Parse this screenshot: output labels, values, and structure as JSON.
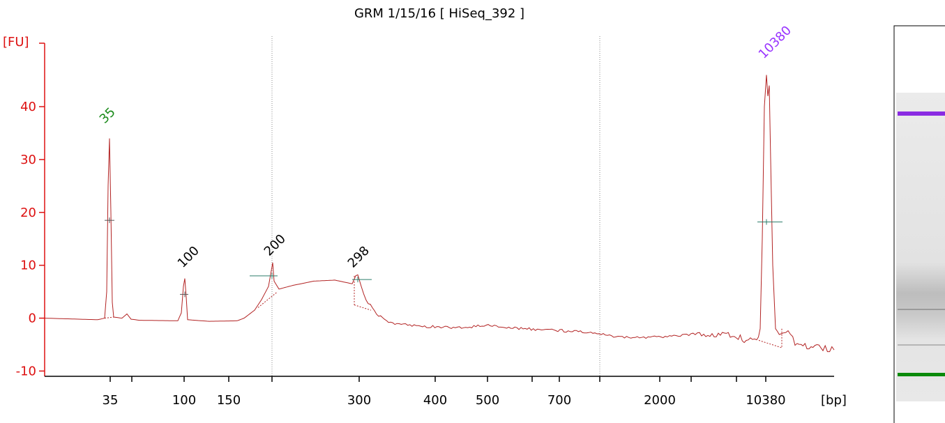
{
  "chart_data": {
    "type": "line",
    "title": "GRM 1/15/16  [ HiSeq_392 ]",
    "ylabel": "[FU]",
    "xlabel": "[bp]",
    "ylim": [
      -11,
      52
    ],
    "yticks": [
      -10,
      0,
      10,
      20,
      30,
      40
    ],
    "xticks": [
      {
        "label": "35"
      },
      {
        "label": ""
      },
      {
        "label": "100"
      },
      {
        "label": "150"
      },
      {
        "label": ""
      },
      {
        "label": "300"
      },
      {
        "label": "400"
      },
      {
        "label": "500"
      },
      {
        "label": ""
      },
      {
        "label": "700"
      },
      {
        "label": ""
      },
      {
        "label": "2000"
      },
      {
        "label": ""
      },
      {
        "label": ""
      },
      {
        "label": "10380"
      }
    ],
    "peaks": [
      {
        "label": "35",
        "bp": 35,
        "fu": 34,
        "color": "#1a8a1a"
      },
      {
        "label": "100",
        "bp": 100,
        "fu": 7.5,
        "color": "#000000"
      },
      {
        "label": "200",
        "bp": 200,
        "fu": 10.5,
        "color": "#000000"
      },
      {
        "label": "298",
        "bp": 298,
        "fu": 8,
        "color": "#000000"
      },
      {
        "label": "10380",
        "bp": 10380,
        "fu": 46,
        "color": "#9933ff"
      }
    ],
    "trace_color": "#b22222",
    "axis_color": "#dd1111"
  },
  "gel": {
    "bands": [
      {
        "position": "upper marker",
        "color": "#8a2be2"
      },
      {
        "position": "lower marker",
        "color": "#0a8a0a"
      }
    ]
  }
}
